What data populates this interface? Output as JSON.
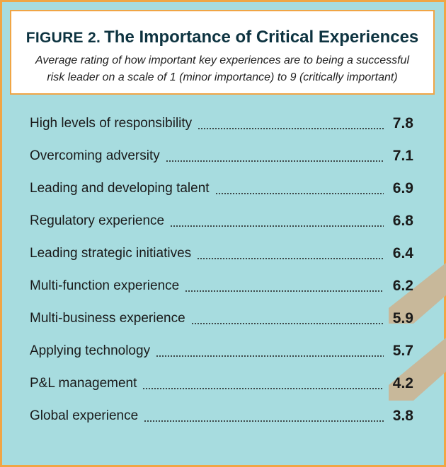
{
  "figure_label": "FIGURE 2.",
  "chart_data": {
    "type": "table",
    "title": "The Importance of Critical Experiences",
    "subtitle": "Average rating of how important key experiences are to being a successful risk leader on a scale of 1 (minor importance) to 9 (critically important)",
    "categories": [
      "High levels of responsibility",
      "Overcoming adversity",
      "Leading and developing talent",
      "Regulatory experience",
      "Leading strategic initiatives",
      "Multi-function experience",
      "Multi-business experience",
      "Applying technology",
      "P&L management",
      "Global experience"
    ],
    "values": [
      7.8,
      7.1,
      6.9,
      6.8,
      6.4,
      6.2,
      5.9,
      5.7,
      4.2,
      3.8
    ],
    "value_labels": [
      "7.8",
      "7.1",
      "6.9",
      "6.8",
      "6.4",
      "6.2",
      "5.9",
      "5.7",
      "4.2",
      "3.8"
    ]
  },
  "colors": {
    "background": "#a7dcdf",
    "border": "#f0a545",
    "chevron": "#c8b89a",
    "title": "#0d3340"
  }
}
